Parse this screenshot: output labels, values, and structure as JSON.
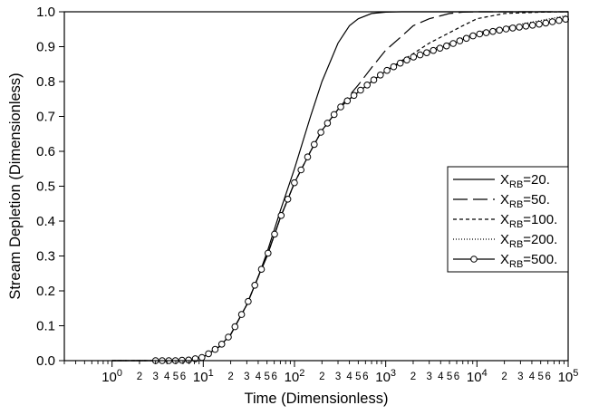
{
  "chart_data": {
    "type": "line",
    "title": "",
    "xlabel": "Time (Dimensionless)",
    "ylabel": "Stream Depletion (Dimensionless)",
    "x_scale": "log",
    "xlim": [
      0.3,
      100000
    ],
    "ylim": [
      0,
      1
    ],
    "grid": false,
    "legend_position": "right",
    "x_major_ticks": [
      1,
      10,
      100,
      1000,
      10000,
      100000
    ],
    "x_major_labels": [
      {
        "base": "10",
        "exp": "0"
      },
      {
        "base": "10",
        "exp": "1"
      },
      {
        "base": "10",
        "exp": "2"
      },
      {
        "base": "10",
        "exp": "3"
      },
      {
        "base": "10",
        "exp": "4"
      },
      {
        "base": "10",
        "exp": "5"
      }
    ],
    "x_minor_labels": [
      "2",
      "3",
      "4",
      "5",
      "6"
    ],
    "y_ticks": [
      0.0,
      0.1,
      0.2,
      0.3,
      0.4,
      0.5,
      0.6,
      0.7,
      0.8,
      0.9,
      1.0
    ],
    "y_tick_labels": [
      "0.0",
      "0.1",
      "0.2",
      "0.3",
      "0.4",
      "0.5",
      "0.6",
      "0.7",
      "0.8",
      "0.9",
      "1.0"
    ],
    "series": [
      {
        "name": "X_RB=20.",
        "label_main": "X",
        "label_sub": "RB",
        "label_tail": "=20.",
        "style": "solid",
        "marker": "none",
        "x": [
          1,
          3,
          5,
          7,
          10,
          15,
          20,
          30,
          40,
          50,
          70,
          100,
          150,
          200,
          300,
          400,
          500,
          700,
          1000,
          1500,
          2000,
          3000,
          100000
        ],
        "y": [
          0.0,
          0.0,
          0.0,
          0.002,
          0.01,
          0.04,
          0.075,
          0.16,
          0.24,
          0.31,
          0.43,
          0.55,
          0.7,
          0.8,
          0.91,
          0.96,
          0.98,
          0.995,
          0.999,
          1.0,
          1.0,
          1.0,
          1.0
        ]
      },
      {
        "name": "X_RB=50.",
        "label_main": "X",
        "label_sub": "RB",
        "label_tail": "=50.",
        "style": "longdash",
        "marker": "none",
        "x": [
          1,
          3,
          5,
          7,
          10,
          15,
          20,
          30,
          40,
          50,
          70,
          100,
          150,
          200,
          300,
          400,
          500,
          700,
          1000,
          1500,
          2000,
          3000,
          5000,
          7000,
          10000,
          20000,
          100000
        ],
        "y": [
          0.0,
          0.0,
          0.0,
          0.002,
          0.01,
          0.04,
          0.075,
          0.16,
          0.24,
          0.3,
          0.41,
          0.51,
          0.6,
          0.66,
          0.72,
          0.76,
          0.79,
          0.84,
          0.89,
          0.93,
          0.96,
          0.98,
          0.995,
          0.999,
          1.0,
          1.0,
          1.0
        ]
      },
      {
        "name": "X_RB=100.",
        "label_main": "X",
        "label_sub": "RB",
        "label_tail": "=100.",
        "style": "shortdash",
        "marker": "none",
        "x": [
          1,
          3,
          5,
          7,
          10,
          15,
          20,
          30,
          40,
          50,
          70,
          100,
          150,
          200,
          300,
          400,
          500,
          700,
          1000,
          1500,
          2000,
          3000,
          5000,
          7000,
          10000,
          20000,
          50000,
          100000
        ],
        "y": [
          0.0,
          0.0,
          0.0,
          0.002,
          0.01,
          0.04,
          0.075,
          0.16,
          0.24,
          0.3,
          0.41,
          0.51,
          0.6,
          0.66,
          0.72,
          0.75,
          0.77,
          0.8,
          0.83,
          0.86,
          0.88,
          0.91,
          0.94,
          0.96,
          0.98,
          0.995,
          0.999,
          1.0
        ]
      },
      {
        "name": "X_RB=200.",
        "label_main": "X",
        "label_sub": "RB",
        "label_tail": "=200.",
        "style": "dotted",
        "marker": "none",
        "x": [
          1,
          3,
          5,
          7,
          10,
          15,
          20,
          30,
          40,
          50,
          70,
          100,
          150,
          200,
          300,
          400,
          500,
          700,
          1000,
          1500,
          2000,
          3000,
          5000,
          7000,
          10000,
          20000,
          50000,
          100000
        ],
        "y": [
          0.0,
          0.0,
          0.0,
          0.002,
          0.01,
          0.04,
          0.075,
          0.16,
          0.24,
          0.3,
          0.41,
          0.51,
          0.6,
          0.66,
          0.72,
          0.75,
          0.77,
          0.8,
          0.83,
          0.86,
          0.87,
          0.89,
          0.91,
          0.925,
          0.94,
          0.955,
          0.975,
          0.99
        ]
      },
      {
        "name": "X_RB=500.",
        "label_main": "X",
        "label_sub": "RB",
        "label_tail": "=500.",
        "style": "solid",
        "marker": "circle",
        "x": [
          1,
          3,
          5,
          7,
          10,
          15,
          20,
          30,
          40,
          50,
          70,
          100,
          150,
          200,
          300,
          400,
          500,
          700,
          1000,
          1500,
          2000,
          3000,
          5000,
          7000,
          10000,
          20000,
          50000,
          100000
        ],
        "y": [
          0.0,
          0.0,
          0.0,
          0.002,
          0.01,
          0.04,
          0.075,
          0.16,
          0.24,
          0.3,
          0.41,
          0.51,
          0.6,
          0.66,
          0.72,
          0.75,
          0.77,
          0.8,
          0.83,
          0.855,
          0.87,
          0.885,
          0.905,
          0.92,
          0.935,
          0.95,
          0.965,
          0.98
        ]
      }
    ]
  }
}
